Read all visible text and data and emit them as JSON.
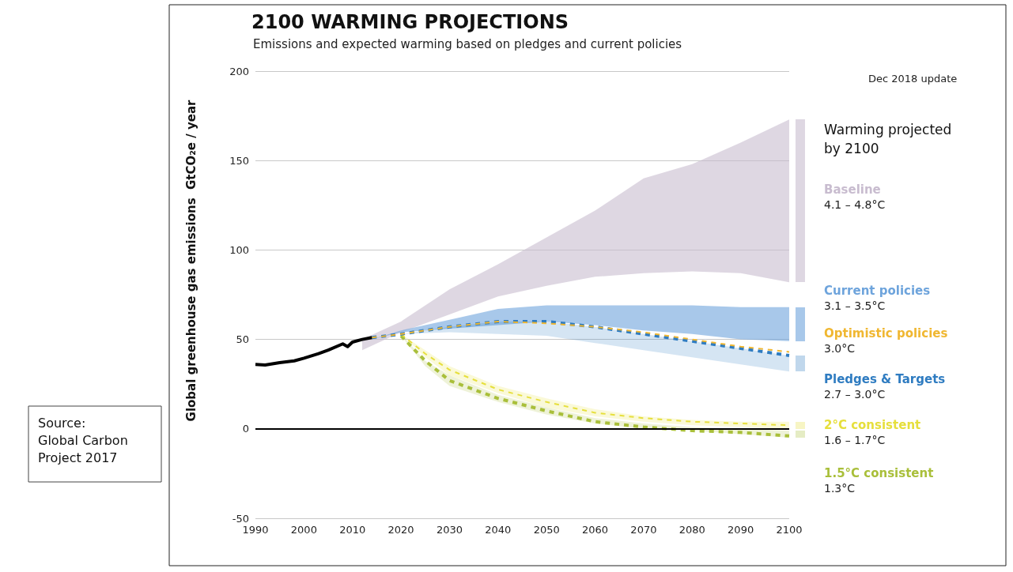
{
  "chart_data": {
    "type": "line",
    "title": "2100 WARMING PROJECTIONS",
    "subtitle": "Emissions and expected warming based on pledges and current policies",
    "ylabel": "Global greenhouse gas emissions  GtCO₂e / year",
    "xlim": [
      1990,
      2100
    ],
    "xticks": [
      1990,
      2000,
      2010,
      2020,
      2030,
      2040,
      2050,
      2060,
      2070,
      2080,
      2090,
      2100
    ],
    "ylim": [
      -50,
      200
    ],
    "yticks": [
      -50,
      0,
      50,
      100,
      150,
      200
    ],
    "grid": "y",
    "legend": "right",
    "marker": "none",
    "ref_lines": [
      {
        "axis": "y",
        "value": 0,
        "color": "#000000"
      }
    ],
    "annotations": [
      "Warming projected by 2100",
      "4.1 – 4.8°C",
      "3.1 – 3.5°C",
      "3.0°C",
      "2.7 – 3.0°C",
      "1.6 – 1.7°C",
      "1.3°C",
      "Dec 2018 update",
      "Source:\nGlobal Carbon\nProject 2017"
    ],
    "series": [
      {
        "color": "#000000",
        "line_style": "solid",
        "x": [
          1990,
          1992,
          1995,
          1998,
          2000,
          2003,
          2005,
          2008,
          2009,
          2010,
          2012,
          2014
        ],
        "values": [
          36,
          35.7,
          37,
          38,
          39.5,
          42,
          44,
          47.5,
          46,
          48.5,
          50,
          51
        ]
      },
      {
        "name": "Baseline",
        "color": "#c8bccf",
        "x": [
          2012,
          2020,
          2030,
          2040,
          2050,
          2060,
          2070,
          2080,
          2090,
          2100
        ],
        "values": [
          null,
          null,
          null,
          null,
          null,
          null,
          null,
          null,
          null,
          null
        ],
        "lower": [
          44,
          54,
          64,
          74,
          80,
          85,
          87,
          88,
          87,
          82
        ],
        "upper": [
          50,
          60,
          78,
          92,
          107,
          122,
          140,
          148,
          160,
          173
        ]
      },
      {
        "name": "Current policies",
        "color": "#6ea4dc",
        "x": [
          2014,
          2020,
          2030,
          2040,
          2050,
          2060,
          2070,
          2080,
          2090,
          2100
        ],
        "values": [
          null,
          null,
          null,
          null,
          null,
          null,
          null,
          null,
          null,
          null
        ],
        "lower": [
          50,
          54,
          56,
          58,
          60,
          58,
          55,
          53,
          50,
          49
        ],
        "upper": [
          50,
          55,
          61,
          67,
          69,
          69,
          69,
          69,
          68,
          68
        ]
      },
      {
        "name": "Optimistic policies",
        "color": "#f0b731",
        "line_style": "dashed",
        "x": [
          2014,
          2020,
          2030,
          2040,
          2050,
          2060,
          2070,
          2080,
          2090,
          2100
        ],
        "values": [
          51,
          53,
          57,
          60,
          59,
          57,
          54,
          50,
          46,
          43
        ]
      },
      {
        "name": "Pledges & Targets",
        "color": "#2f7cc1",
        "line_style": "dashed",
        "x": [
          2014,
          2020,
          2030,
          2040,
          2050,
          2060,
          2070,
          2080,
          2090,
          2100
        ],
        "values": [
          51,
          53,
          57,
          60,
          60,
          57,
          53,
          49,
          45,
          41
        ],
        "lower": [
          51,
          53,
          54,
          53,
          52,
          48,
          44,
          40,
          36,
          32
        ],
        "upper": [
          51,
          53,
          57,
          60,
          60,
          57,
          53,
          49,
          45,
          41
        ]
      },
      {
        "name": "2°C consistent",
        "color": "#e6df3c",
        "line_style": "dashed",
        "x": [
          2020,
          2025,
          2030,
          2040,
          2050,
          2060,
          2070,
          2080,
          2090,
          2100
        ],
        "values": [
          53,
          42,
          33,
          22,
          15,
          9,
          6,
          4,
          3,
          2
        ],
        "lower": [
          53,
          40,
          30,
          20,
          12,
          7,
          4,
          2,
          1,
          0
        ],
        "upper": [
          53,
          44,
          35,
          24,
          17,
          11,
          7,
          5,
          4,
          4
        ]
      },
      {
        "name": "1.5°C consistent",
        "color": "#a9bf3a",
        "line_style": "dashed",
        "x": [
          2020,
          2025,
          2030,
          2040,
          2050,
          2060,
          2070,
          2080,
          2090,
          2100
        ],
        "values": [
          52,
          38,
          27,
          17,
          10,
          4,
          1,
          -1,
          -2,
          -4
        ],
        "lower": [
          52,
          35,
          24,
          15,
          8,
          3,
          0,
          -1,
          -3,
          -5
        ],
        "upper": [
          53,
          38,
          30,
          19,
          12,
          6,
          3,
          1,
          0,
          -1
        ]
      }
    ]
  }
}
